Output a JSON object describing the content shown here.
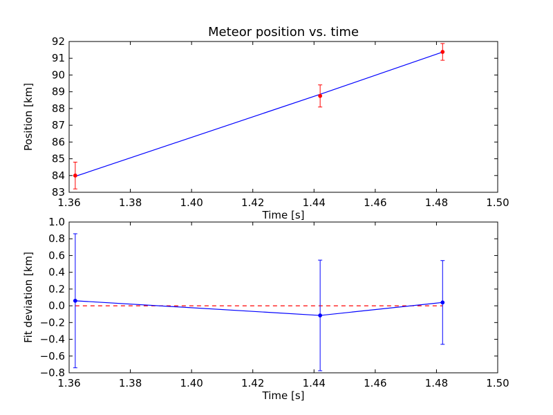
{
  "chart_data": [
    {
      "type": "line",
      "title": "Meteor position vs. time",
      "xlabel": "Time [s]",
      "ylabel": "Position [km]",
      "xlim": [
        1.36,
        1.5
      ],
      "ylim": [
        83,
        92
      ],
      "xticks": [
        "1.36",
        "1.38",
        "1.40",
        "1.42",
        "1.44",
        "1.46",
        "1.48",
        "1.50"
      ],
      "yticks": [
        "83",
        "84",
        "85",
        "86",
        "87",
        "88",
        "89",
        "90",
        "91",
        "92"
      ],
      "grid": false,
      "series": [
        {
          "kind": "fit-line",
          "color": "#0000ff",
          "x": [
            1.362,
            1.442,
            1.482
          ],
          "y": [
            83.95,
            88.85,
            91.37
          ]
        },
        {
          "kind": "points-with-errorbars",
          "color": "#ff0000",
          "x": [
            1.362,
            1.442,
            1.482
          ],
          "y": [
            84.0,
            88.75,
            91.38
          ],
          "yerr": [
            0.8,
            0.66,
            0.5
          ]
        }
      ]
    },
    {
      "type": "line",
      "title": "",
      "xlabel": "Time [s]",
      "ylabel": "Fit deviation [km]",
      "xlim": [
        1.36,
        1.5
      ],
      "ylim": [
        -0.8,
        1.0
      ],
      "xticks": [
        "1.36",
        "1.38",
        "1.40",
        "1.42",
        "1.44",
        "1.46",
        "1.48",
        "1.50"
      ],
      "yticks": [
        "−0.8",
        "−0.6",
        "−0.4",
        "−0.2",
        "0.0",
        "0.2",
        "0.4",
        "0.6",
        "0.8",
        "1.0"
      ],
      "grid": false,
      "series": [
        {
          "kind": "zero-reference",
          "color": "#ff0000",
          "dashed": true,
          "x": [
            1.362,
            1.482
          ],
          "y": [
            0.0,
            0.0
          ]
        },
        {
          "kind": "points-with-errorbars",
          "color": "#0000ff",
          "x": [
            1.362,
            1.442,
            1.482
          ],
          "y": [
            0.06,
            -0.115,
            0.04
          ],
          "yerr": [
            0.8,
            0.66,
            0.5
          ]
        }
      ]
    }
  ]
}
